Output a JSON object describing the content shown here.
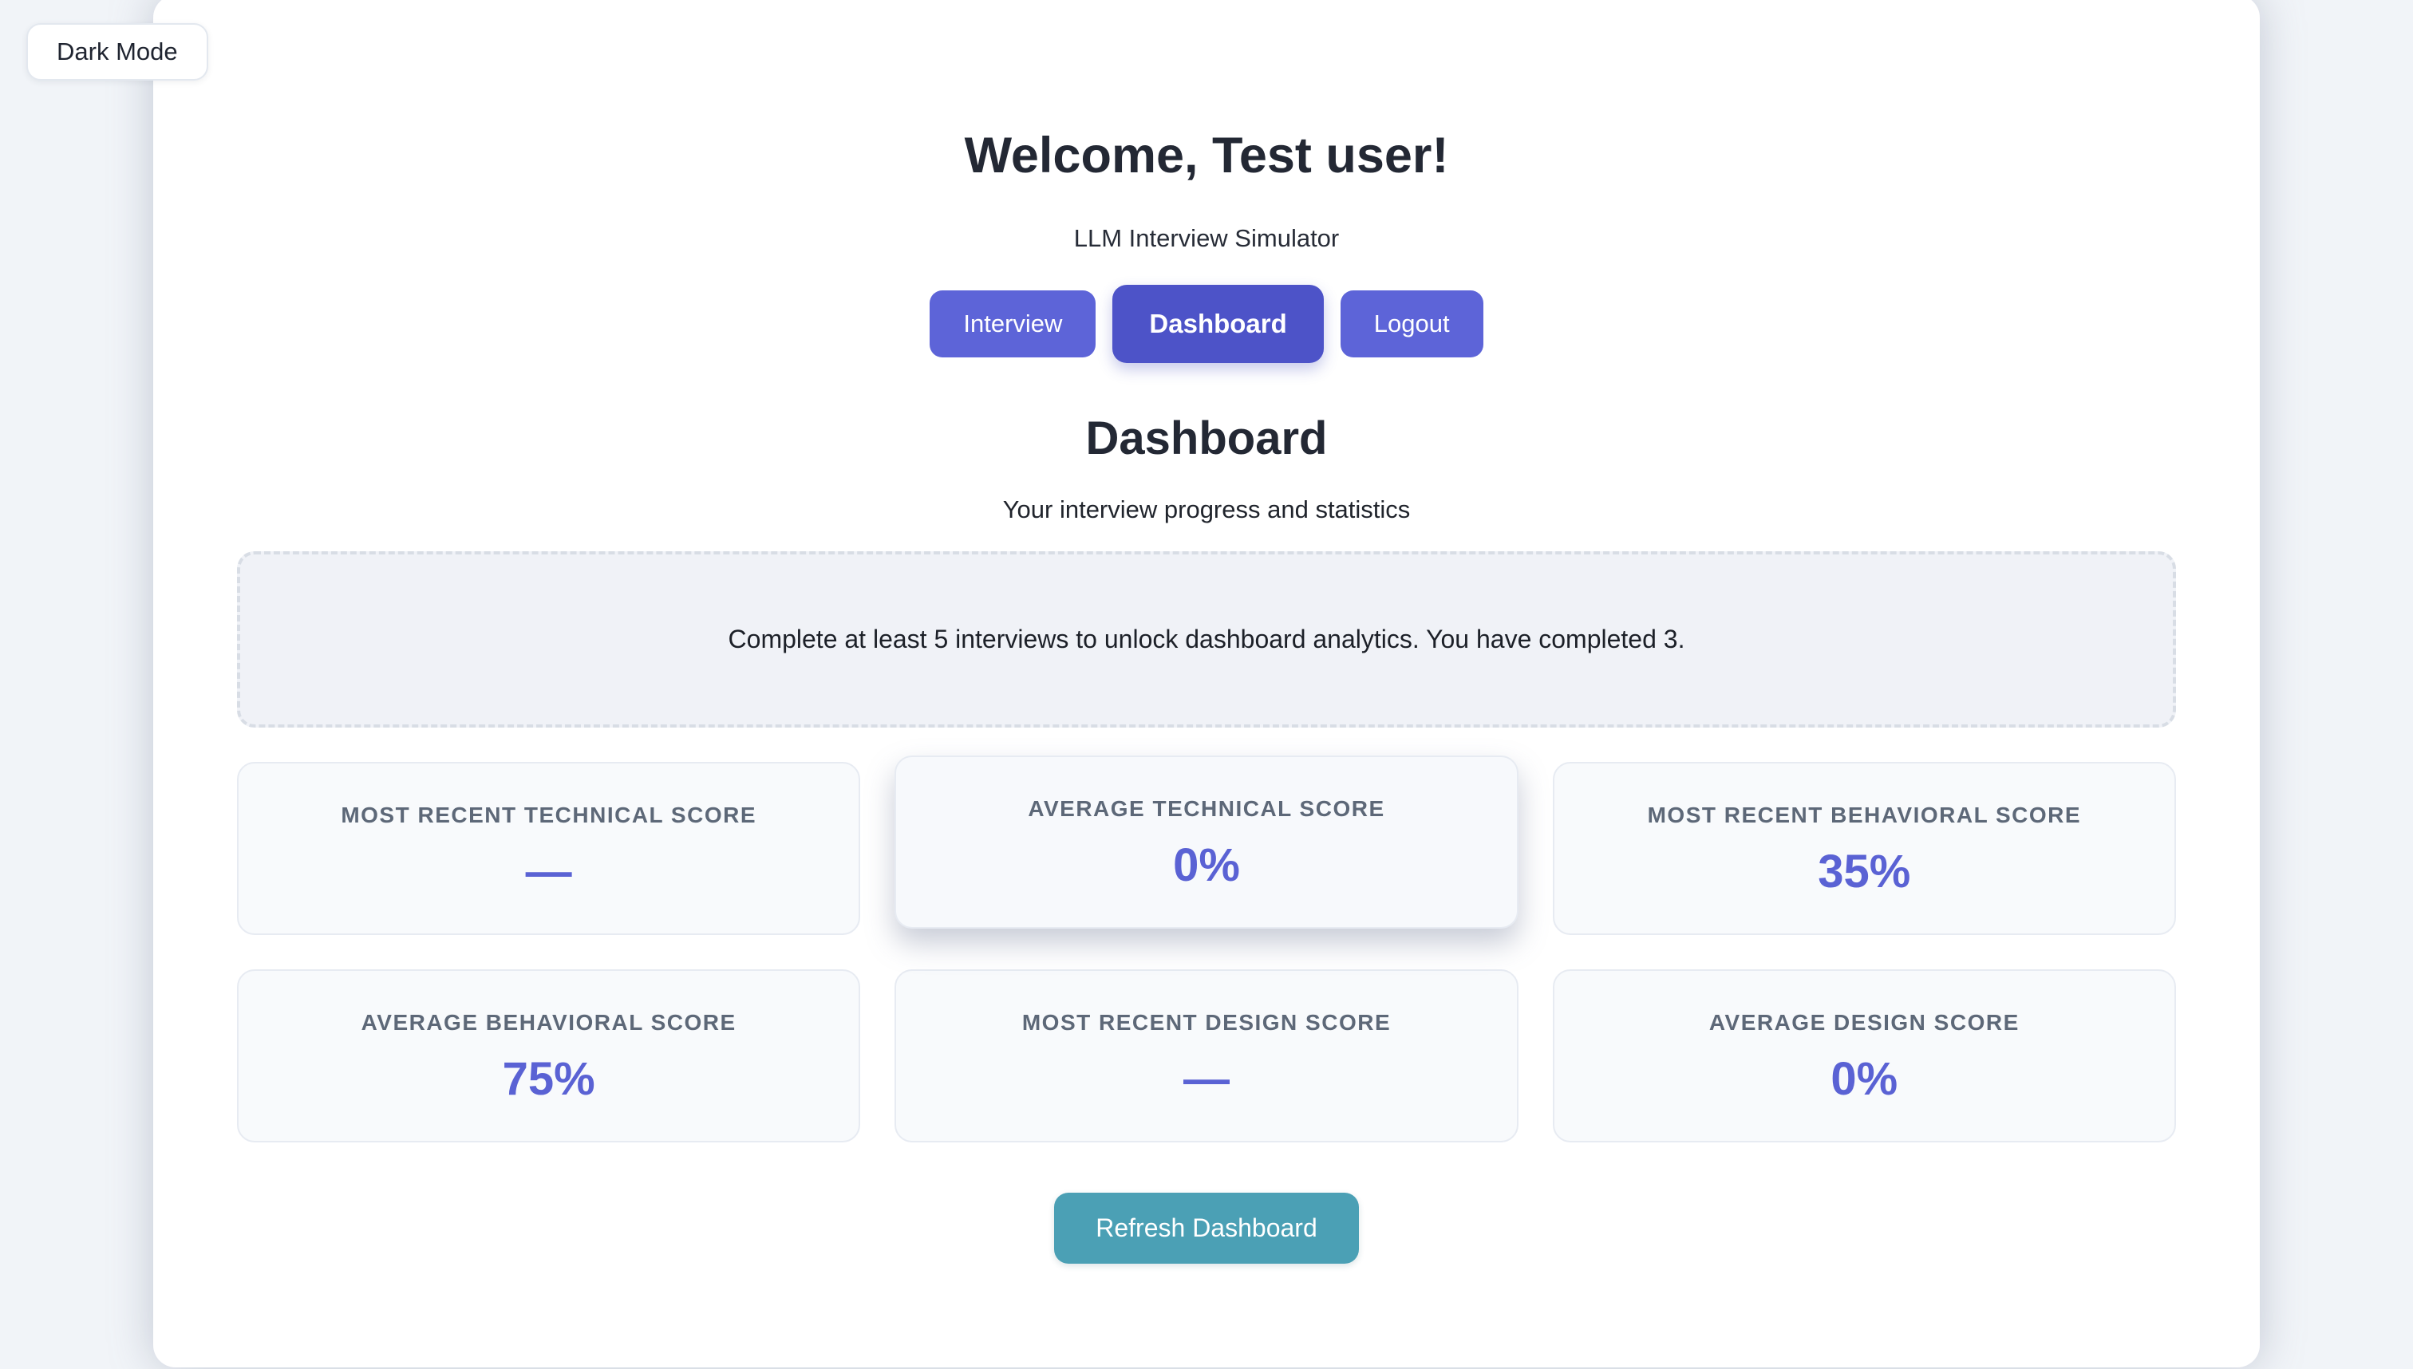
{
  "theme": {
    "accent_indigo": "#5d64d8",
    "accent_indigo_active": "#4d53c8",
    "accent_teal": "#4ba0b5",
    "stat_value_color": "#5a62d4",
    "stat_label_color": "#5d6878"
  },
  "dark_mode_toggle": {
    "label": "Dark Mode"
  },
  "header": {
    "welcome_title": "Welcome, Test user!",
    "app_subtitle": "LLM Interview Simulator"
  },
  "nav": {
    "buttons": [
      {
        "label": "Interview",
        "active": false
      },
      {
        "label": "Dashboard",
        "active": true
      },
      {
        "label": "Logout",
        "active": false
      }
    ]
  },
  "dashboard": {
    "title": "Dashboard",
    "subtitle": "Your interview progress and statistics",
    "notice": "Complete at least 5 interviews to unlock dashboard analytics. You have completed 3.",
    "stats": [
      {
        "label": "MOST RECENT TECHNICAL SCORE",
        "value": "—"
      },
      {
        "label": "AVERAGE TECHNICAL SCORE",
        "value": "0%"
      },
      {
        "label": "MOST RECENT BEHAVIORAL SCORE",
        "value": "35%"
      },
      {
        "label": "AVERAGE BEHAVIORAL SCORE",
        "value": "75%"
      },
      {
        "label": "MOST RECENT DESIGN SCORE",
        "value": "—"
      },
      {
        "label": "AVERAGE DESIGN SCORE",
        "value": "0%"
      }
    ],
    "refresh_button": "Refresh Dashboard"
  }
}
